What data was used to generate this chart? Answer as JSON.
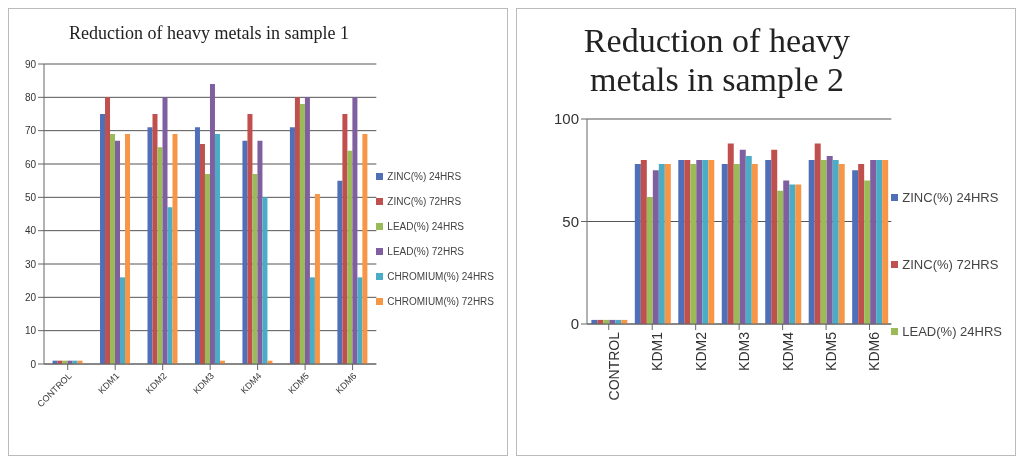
{
  "chart_data": [
    {
      "type": "bar",
      "title": "Reduction of heavy metals in sample 1",
      "categories": [
        "CONTROL",
        "KDM1",
        "KDM2",
        "KDM3",
        "KDM4",
        "KDM5",
        "KDM6"
      ],
      "series": [
        {
          "name": "ZINC(%) 24HRS",
          "color": "#4f6fb8",
          "values": [
            1,
            75,
            71,
            71,
            67,
            71,
            55
          ]
        },
        {
          "name": "ZINC(%) 72HRS",
          "color": "#c0504d",
          "values": [
            1,
            80,
            75,
            66,
            75,
            80,
            75
          ]
        },
        {
          "name": "LEAD(%) 24HRS",
          "color": "#9bbb59",
          "values": [
            1,
            69,
            65,
            57,
            57,
            78,
            64
          ]
        },
        {
          "name": "LEAD(%) 72HRS",
          "color": "#7f5fa0",
          "values": [
            1,
            67,
            80,
            84,
            67,
            80,
            80
          ]
        },
        {
          "name": "CHROMIUM(%) 24HRS",
          "color": "#4bacc6",
          "values": [
            1,
            26,
            47,
            69,
            50,
            26,
            26
          ]
        },
        {
          "name": "CHROMIUM(%) 72HRS",
          "color": "#f79646",
          "values": [
            1,
            69,
            69,
            1,
            1,
            51,
            69
          ]
        }
      ],
      "ylim": [
        0,
        90
      ],
      "yticks": [
        0,
        10,
        20,
        30,
        40,
        50,
        60,
        70,
        80,
        90
      ],
      "grid": "y",
      "legend": "right"
    },
    {
      "type": "bar",
      "title": "Reduction of heavy metals in sample 2",
      "categories": [
        "CONTROL",
        "KDM1",
        "KDM2",
        "KDM3",
        "KDM4",
        "KDM5",
        "KDM6"
      ],
      "series": [
        {
          "name": "ZINC(%) 24HRS",
          "color": "#4f6fb8",
          "values": [
            2,
            78,
            80,
            78,
            80,
            80,
            75
          ]
        },
        {
          "name": "ZINC(%) 72HRS",
          "color": "#c0504d",
          "values": [
            2,
            80,
            80,
            88,
            85,
            88,
            78
          ]
        },
        {
          "name": "LEAD(%) 24HRS",
          "color": "#9bbb59",
          "values": [
            2,
            62,
            78,
            78,
            65,
            80,
            70
          ]
        },
        {
          "color": "#7f5fa0",
          "values": [
            2,
            75,
            80,
            85,
            70,
            82,
            80
          ]
        },
        {
          "color": "#4bacc6",
          "values": [
            2,
            78,
            80,
            82,
            68,
            80,
            80
          ]
        },
        {
          "color": "#f79646",
          "values": [
            2,
            78,
            80,
            78,
            68,
            78,
            80
          ]
        }
      ],
      "ylim": [
        0,
        100
      ],
      "yticks": [
        0,
        50,
        100
      ],
      "grid": "y",
      "legend": "right"
    }
  ]
}
